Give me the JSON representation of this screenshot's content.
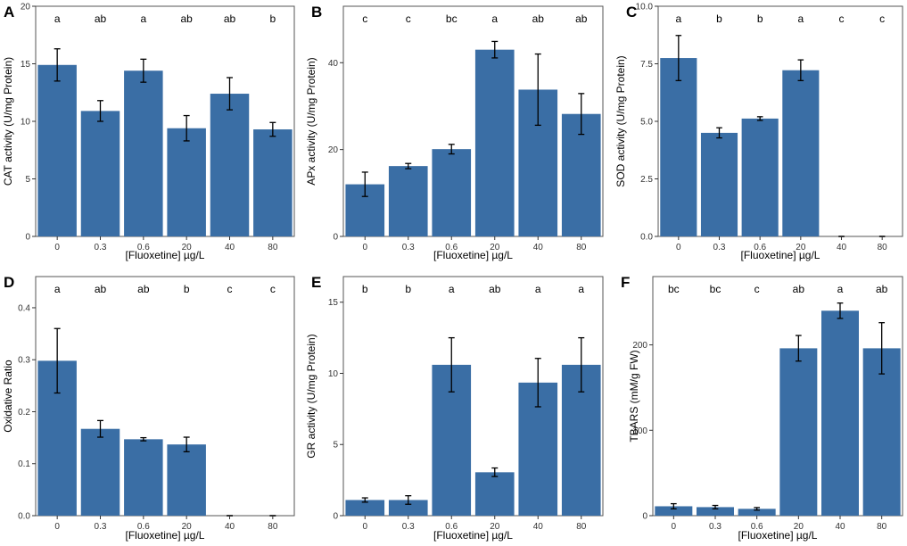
{
  "figure": {
    "bar_color": "#3a6ea5",
    "error_bar_color": "#000000",
    "frame_color": "#555555"
  },
  "chart_data": [
    {
      "panel": "A",
      "type": "bar",
      "categories": [
        "0",
        "0.3",
        "0.6",
        "20",
        "40",
        "80"
      ],
      "values": [
        14.9,
        10.9,
        14.4,
        9.4,
        12.4,
        9.3
      ],
      "errors": [
        1.4,
        0.9,
        1.0,
        1.1,
        1.4,
        0.6
      ],
      "letters": [
        "a",
        "ab",
        "a",
        "ab",
        "ab",
        "b"
      ],
      "xlabel": "[Fluoxetine] µg/L",
      "ylabel": "CAT activity (U/mg Protein)",
      "ylim": [
        0,
        20
      ],
      "yticks": [
        0,
        5,
        10,
        15,
        20
      ],
      "ytick_labels": [
        "0",
        "5",
        "10",
        "15",
        "20"
      ]
    },
    {
      "panel": "B",
      "type": "bar",
      "categories": [
        "0",
        "0.3",
        "0.6",
        "20",
        "40",
        "80"
      ],
      "values": [
        12.0,
        16.2,
        20.1,
        43.0,
        33.8,
        28.2
      ],
      "errors": [
        2.8,
        0.6,
        1.1,
        1.9,
        8.2,
        4.7
      ],
      "letters": [
        "c",
        "c",
        "bc",
        "a",
        "ab",
        "ab"
      ],
      "xlabel": "[Fluoxetine] µg/L",
      "ylabel": "APx activity (U/mg Protein)",
      "ylim": [
        0,
        53
      ],
      "yticks": [
        0,
        20,
        40
      ],
      "ytick_labels": [
        "0",
        "20",
        "40"
      ]
    },
    {
      "panel": "C",
      "type": "bar",
      "categories": [
        "0",
        "0.3",
        "0.6",
        "20",
        "40",
        "80"
      ],
      "values": [
        7.75,
        4.5,
        5.12,
        7.22,
        0,
        0
      ],
      "errors": [
        0.98,
        0.22,
        0.08,
        0.45,
        0,
        0
      ],
      "letters": [
        "a",
        "b",
        "b",
        "a",
        "c",
        "c"
      ],
      "xlabel": "[Fluoxetine] µg/L",
      "ylabel": "SOD activity (U/mg Protein)",
      "ylim": [
        0,
        10
      ],
      "yticks": [
        0,
        2.5,
        5,
        7.5,
        10
      ],
      "ytick_labels": [
        "0.0",
        "2.5",
        "5.0",
        "7.5",
        "10.0"
      ]
    },
    {
      "panel": "D",
      "type": "bar",
      "categories": [
        "0",
        "0.3",
        "0.6",
        "20",
        "40",
        "80"
      ],
      "values": [
        0.298,
        0.167,
        0.147,
        0.137,
        0,
        0
      ],
      "errors": [
        0.062,
        0.016,
        0.003,
        0.014,
        0,
        0
      ],
      "letters": [
        "a",
        "ab",
        "ab",
        "b",
        "c",
        "c"
      ],
      "xlabel": "[Fluoxetine] µg/L",
      "ylabel": "Oxidative Ratio",
      "ylim": [
        0,
        0.46
      ],
      "yticks": [
        0,
        0.1,
        0.2,
        0.3,
        0.4
      ],
      "ytick_labels": [
        "0.0",
        "0.1",
        "0.2",
        "0.3",
        "0.4"
      ]
    },
    {
      "panel": "E",
      "type": "bar",
      "categories": [
        "0",
        "0.3",
        "0.6",
        "20",
        "40",
        "80"
      ],
      "values": [
        1.1,
        1.1,
        10.6,
        3.05,
        9.35,
        10.6
      ],
      "errors": [
        0.15,
        0.3,
        1.9,
        0.3,
        1.7,
        1.9
      ],
      "letters": [
        "b",
        "b",
        "a",
        "ab",
        "a",
        "a"
      ],
      "xlabel": "[Fluoxetine] µg/L",
      "ylabel": "GR activity (U/mg Protein)",
      "ylim": [
        0,
        16.8
      ],
      "yticks": [
        0,
        5,
        10,
        15
      ],
      "ytick_labels": [
        "0",
        "5",
        "10",
        "15"
      ]
    },
    {
      "panel": "F",
      "type": "bar",
      "categories": [
        "0",
        "0.3",
        "0.6",
        "20",
        "40",
        "80"
      ],
      "values": [
        11,
        10,
        8,
        196,
        240,
        196
      ],
      "errors": [
        3,
        2,
        1.5,
        15,
        9,
        30
      ],
      "letters": [
        "bc",
        "bc",
        "c",
        "ab",
        "a",
        "ab"
      ],
      "xlabel": "[Fluoxetine] µg/L",
      "ylabel": "TBARS (mM/g FW)",
      "ylim": [
        0,
        280
      ],
      "yticks": [
        0,
        100,
        200
      ],
      "ytick_labels": [
        "0",
        "100",
        "200"
      ]
    }
  ]
}
